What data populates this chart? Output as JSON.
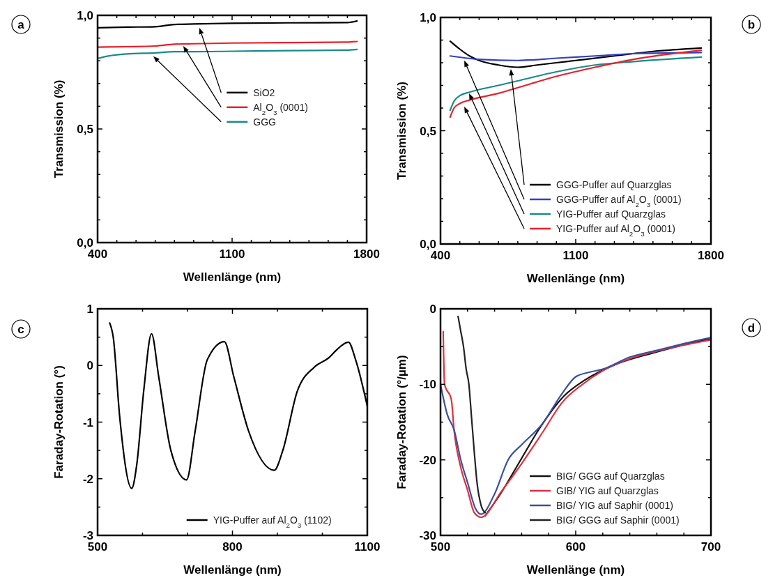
{
  "chart_data": [
    {
      "type": "line",
      "xlabel": "Wellenlänge (nm)",
      "ylabel": "Transmission (%)",
      "annotations": [
        "a"
      ],
      "legend": "right",
      "xlim": [
        400,
        1800
      ],
      "xticks": [
        400,
        {
          "value": 500,
          "label": null
        },
        {
          "value": 600,
          "label": null
        },
        {
          "value": 700,
          "label": null
        },
        {
          "value": 800,
          "label": null
        },
        {
          "value": 900,
          "label": null
        },
        {
          "value": 1000,
          "label": null
        },
        1100,
        {
          "value": 1200,
          "label": null
        },
        {
          "value": 1300,
          "label": null
        },
        {
          "value": 1400,
          "label": null
        },
        {
          "value": 1500,
          "label": null
        },
        {
          "value": 1600,
          "label": null
        },
        {
          "value": 1700,
          "label": null
        },
        1800
      ],
      "ylim": [
        0,
        1
      ],
      "yticks": [
        {
          "value": 0,
          "label": "0,0"
        },
        {
          "value": 0.1,
          "label": null
        },
        {
          "value": 0.2,
          "label": null
        },
        {
          "value": 0.3,
          "label": null
        },
        {
          "value": 0.4,
          "label": null
        },
        {
          "value": 0.5,
          "label": "0,5"
        },
        {
          "value": 0.6,
          "label": null
        },
        {
          "value": 0.7,
          "label": null
        },
        {
          "value": 0.8,
          "label": null
        },
        {
          "value": 0.9,
          "label": null
        },
        {
          "value": 1,
          "label": "1,0"
        }
      ],
      "series": [
        {
          "name": "SiO2",
          "color": "#000000",
          "x": [
            400,
            550,
            700,
            800,
            900,
            1100,
            1400,
            1700,
            1750
          ],
          "values": [
            0.945,
            0.948,
            0.95,
            0.96,
            0.962,
            0.965,
            0.967,
            0.968,
            0.975
          ]
        },
        {
          "name": "Al$_{2}$O$_{3}$ (0001)",
          "color": "#e8202a",
          "x": [
            400,
            550,
            700,
            800,
            900,
            1100,
            1400,
            1700,
            1750
          ],
          "values": [
            0.86,
            0.862,
            0.865,
            0.873,
            0.875,
            0.878,
            0.88,
            0.882,
            0.885
          ]
        },
        {
          "name": "GGG",
          "color": "#1a8a8a",
          "x": [
            400,
            450,
            550,
            700,
            800,
            900,
            1100,
            1400,
            1700,
            1750
          ],
          "values": [
            0.81,
            0.82,
            0.83,
            0.835,
            0.84,
            0.84,
            0.842,
            0.845,
            0.847,
            0.85
          ]
        }
      ]
    },
    {
      "type": "line",
      "xlabel": "Wellenlänge (nm)",
      "ylabel": "Transmission (%)",
      "annotations": [
        "b"
      ],
      "legend": "bottom right",
      "xlim": [
        400,
        1800
      ],
      "xticks": [
        400,
        {
          "value": 500,
          "label": null
        },
        {
          "value": 600,
          "label": null
        },
        {
          "value": 700,
          "label": null
        },
        {
          "value": 800,
          "label": null
        },
        {
          "value": 900,
          "label": null
        },
        {
          "value": 1000,
          "label": null
        },
        1100,
        {
          "value": 1200,
          "label": null
        },
        {
          "value": 1300,
          "label": null
        },
        {
          "value": 1400,
          "label": null
        },
        {
          "value": 1500,
          "label": null
        },
        {
          "value": 1600,
          "label": null
        },
        {
          "value": 1700,
          "label": null
        },
        1800
      ],
      "ylim": [
        0,
        1
      ],
      "yticks": [
        {
          "value": 0,
          "label": "0,0"
        },
        {
          "value": 0.1,
          "label": null
        },
        {
          "value": 0.2,
          "label": null
        },
        {
          "value": 0.3,
          "label": null
        },
        {
          "value": 0.4,
          "label": null
        },
        {
          "value": 0.5,
          "label": "0,5"
        },
        {
          "value": 0.6,
          "label": null
        },
        {
          "value": 0.7,
          "label": null
        },
        {
          "value": 0.8,
          "label": null
        },
        {
          "value": 0.9,
          "label": null
        },
        {
          "value": 1,
          "label": "1,0"
        }
      ],
      "series": [
        {
          "name": "GGG-Puffer auf Quarzglas",
          "color": "#000000",
          "x": [
            450,
            500,
            550,
            600,
            700,
            800,
            900,
            1000,
            1100,
            1300,
            1500,
            1750
          ],
          "values": [
            0.895,
            0.86,
            0.83,
            0.81,
            0.79,
            0.78,
            0.79,
            0.8,
            0.81,
            0.83,
            0.85,
            0.865
          ]
        },
        {
          "name": "GGG-Puffer auf Al$_{2}$O$_{3}$ (0001)",
          "color": "#3340c0",
          "x": [
            450,
            600,
            800,
            1000,
            1200,
            1400,
            1750
          ],
          "values": [
            0.83,
            0.815,
            0.81,
            0.82,
            0.83,
            0.84,
            0.845
          ]
        },
        {
          "name": "YIG-Puffer auf Quarzglas",
          "color": "#1a8a8a",
          "x": [
            450,
            470,
            500,
            550,
            700,
            800,
            1000,
            1200,
            1400,
            1750
          ],
          "values": [
            0.59,
            0.63,
            0.655,
            0.67,
            0.7,
            0.72,
            0.76,
            0.79,
            0.805,
            0.825
          ]
        },
        {
          "name": "YIG-Puffer auf Al$_{2}$O$_{3}$ (0001)",
          "color": "#e8202a",
          "x": [
            450,
            470,
            500,
            550,
            700,
            800,
            1000,
            1200,
            1400,
            1750
          ],
          "values": [
            0.56,
            0.6,
            0.62,
            0.635,
            0.665,
            0.69,
            0.74,
            0.78,
            0.815,
            0.855
          ]
        }
      ]
    },
    {
      "type": "line",
      "xlabel": "Wellenlänge (nm)",
      "ylabel": "Faraday-Rotation (°)",
      "annotations": [
        "c"
      ],
      "legend": "bottom right",
      "xlim": [
        500,
        1100
      ],
      "xticks": [
        500,
        {
          "value": 600,
          "label": null
        },
        {
          "value": 700,
          "label": null
        },
        800,
        {
          "value": 900,
          "label": null
        },
        {
          "value": 1000,
          "label": null
        },
        1100
      ],
      "ylim": [
        -3,
        1
      ],
      "yticks": [
        -3,
        {
          "value": -2.5,
          "label": null
        },
        -2,
        {
          "value": -1.5,
          "label": null
        },
        -1,
        {
          "value": -0.5,
          "label": null
        },
        0,
        {
          "value": 0.5,
          "label": null
        },
        1
      ],
      "series": [
        {
          "name": "YIG-Puffer auf Al$_{2}$O$_{3}$ (1102)",
          "color": "#000000",
          "x": [
            527,
            535,
            549,
            576,
            587,
            603,
            620,
            636,
            663,
            698,
            717,
            744,
            782,
            803,
            836,
            893,
            912,
            944,
            982,
            1015,
            1031,
            1058,
            1074,
            1100
          ],
          "values": [
            0.75,
            0.49,
            -0.89,
            -2.17,
            -1.76,
            -0.42,
            0.56,
            -0.2,
            -1.5,
            -2.02,
            -1.16,
            0.1,
            0.42,
            -0.2,
            -1.16,
            -1.85,
            -1.5,
            -0.46,
            -0.03,
            0.14,
            0.27,
            0.41,
            0.1,
            -0.72
          ]
        }
      ]
    },
    {
      "type": "line",
      "xlabel": "Wellenlänge (nm)",
      "ylabel": "Faraday-Rotation (°/µm)",
      "annotations": [
        "d"
      ],
      "legend": "bottom right",
      "xlim": [
        500,
        700
      ],
      "xticks": [
        500,
        {
          "value": 520,
          "label": null
        },
        {
          "value": 540,
          "label": null
        },
        {
          "value": 560,
          "label": null
        },
        {
          "value": 580,
          "label": null
        },
        600,
        {
          "value": 620,
          "label": null
        },
        {
          "value": 640,
          "label": null
        },
        {
          "value": 660,
          "label": null
        },
        {
          "value": 680,
          "label": null
        },
        700
      ],
      "ylim": [
        -30,
        0
      ],
      "yticks": [
        -30,
        {
          "value": -25,
          "label": null
        },
        -20,
        {
          "value": -15,
          "label": null
        },
        -10,
        {
          "value": -5,
          "label": null
        },
        0
      ],
      "series": [
        {
          "name": "BIG/ GGG auf Quarzglas",
          "color": "#111111",
          "x": [
            533,
            544,
            559,
            573,
            591,
            607,
            629,
            656,
            684,
            700
          ],
          "values": [
            -27.4,
            -24.6,
            -20.1,
            -15.9,
            -11.6,
            -9.4,
            -7.4,
            -5.9,
            -4.6,
            -4
          ]
        },
        {
          "name": "GIB/ YIG auf Quarzglas",
          "color": "#e03040",
          "x": [
            502,
            503,
            508,
            510,
            515,
            520,
            525,
            530,
            545,
            560,
            575,
            590,
            605,
            620,
            640,
            660,
            680,
            700
          ],
          "values": [
            -3,
            -10,
            -12,
            -16,
            -21,
            -24,
            -27,
            -27.6,
            -24.2,
            -20.5,
            -16.5,
            -12.4,
            -10,
            -8.2,
            -6.6,
            -5.6,
            -4.8,
            -4.1
          ]
        },
        {
          "name": "BIG/ YIG auf Saphir (0001)",
          "color": "#3a4fa0",
          "x": [
            500,
            505,
            510,
            515,
            520,
            526,
            530,
            540,
            550,
            560,
            575,
            590,
            600,
            610,
            620,
            640,
            660,
            680,
            700
          ],
          "values": [
            -10,
            -14,
            -16,
            -20,
            -23,
            -26.5,
            -27.2,
            -24.5,
            -20,
            -18,
            -15.3,
            -11.2,
            -9,
            -8.4,
            -8,
            -6.4,
            -5.5,
            -4.6,
            -3.8
          ]
        },
        {
          "name": "BIG/ GGG auf Saphir (0001)",
          "color": "#222222",
          "x": [
            513,
            515,
            517,
            519,
            521,
            523,
            525,
            527,
            530,
            533
          ],
          "values": [
            -1,
            -3,
            -5,
            -8,
            -10,
            -14.5,
            -19,
            -23,
            -26,
            -27
          ]
        }
      ]
    }
  ]
}
